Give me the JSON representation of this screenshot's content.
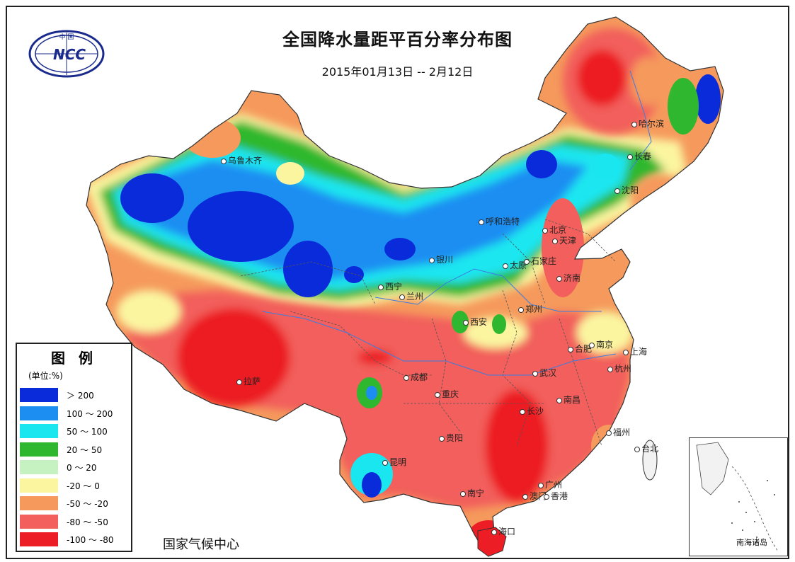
{
  "title": "全国降水量距平百分率分布图",
  "subtitle": "2015年01月13日 -- 2月12日",
  "logo_text": "NCC",
  "logo_top_text": "中 国",
  "credit": "国家气候中心",
  "inset_label": "南海诸岛",
  "legend": {
    "title": "图 例",
    "unit": "(单位:%)",
    "items": [
      {
        "label": "＞ 200",
        "color": "#0a2bd9"
      },
      {
        "label": "100 ～ 200",
        "color": "#1c8ef2"
      },
      {
        "label": "50 ～ 100",
        "color": "#1ae6f0"
      },
      {
        "label": "20 ～ 50",
        "color": "#2fb82f"
      },
      {
        "label": "0 ～ 20",
        "color": "#c6f2c2"
      },
      {
        "label": "-20 ～ 0",
        "color": "#fbf5a0"
      },
      {
        "label": "-50 ～ -20",
        "color": "#f59a5c"
      },
      {
        "label": "-80 ～ -50",
        "color": "#f25f5c"
      },
      {
        "label": "-100 ～ -80",
        "color": "#ec1d24"
      }
    ]
  },
  "cities": [
    {
      "name": "乌鲁木齐"
    },
    {
      "name": "哈尔滨"
    },
    {
      "name": "长春"
    },
    {
      "name": "沈阳"
    },
    {
      "name": "呼和浩特"
    },
    {
      "name": "北京"
    },
    {
      "name": "天津"
    },
    {
      "name": "银川"
    },
    {
      "name": "太原"
    },
    {
      "name": "石家庄"
    },
    {
      "name": "济南"
    },
    {
      "name": "西宁"
    },
    {
      "name": "兰州"
    },
    {
      "name": "郑州"
    },
    {
      "name": "西安"
    },
    {
      "name": "合肥"
    },
    {
      "name": "南京"
    },
    {
      "name": "上海"
    },
    {
      "name": "杭州"
    },
    {
      "name": "拉萨"
    },
    {
      "name": "成都"
    },
    {
      "name": "武汉"
    },
    {
      "name": "重庆"
    },
    {
      "name": "长沙"
    },
    {
      "name": "南昌"
    },
    {
      "name": "贵阳"
    },
    {
      "name": "福州"
    },
    {
      "name": "台北"
    },
    {
      "name": "昆明"
    },
    {
      "name": "南宁"
    },
    {
      "name": "广州"
    },
    {
      "name": "澳门"
    },
    {
      "name": "香港"
    },
    {
      "name": "海口"
    }
  ]
}
